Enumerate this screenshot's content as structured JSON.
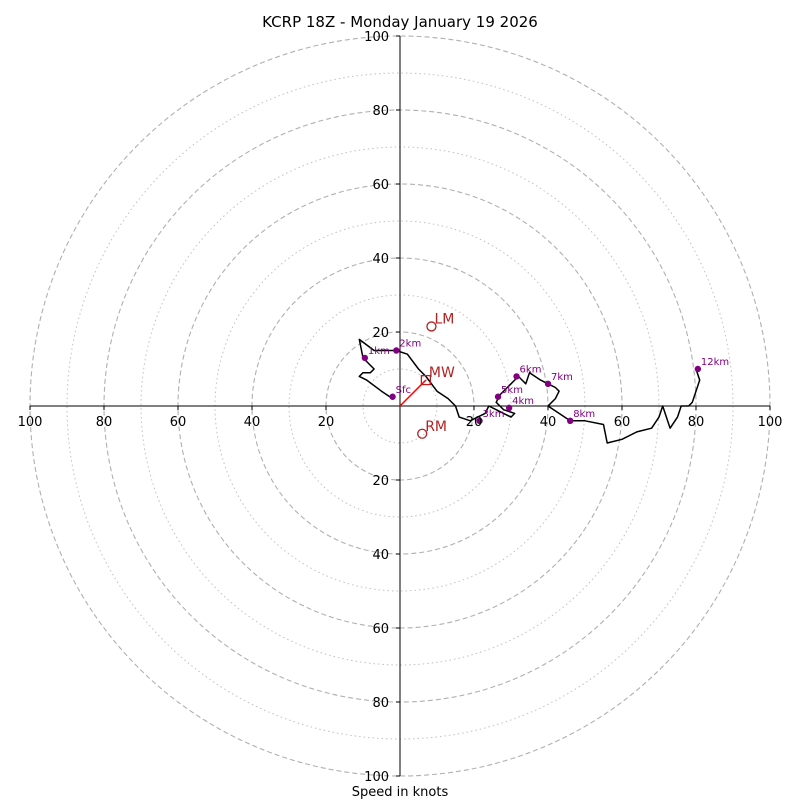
{
  "chart_data": {
    "type": "hodograph",
    "title": "KCRP 18Z - Monday January 19 2026",
    "xlabel": "Speed in knots",
    "max_speed": 100,
    "rings_dashed": [
      20,
      40,
      60,
      80,
      100
    ],
    "rings_dotted": [
      10,
      30,
      50,
      70,
      90
    ],
    "tick_labels": {
      "left": [
        "100",
        "80",
        "60",
        "40",
        "20"
      ],
      "right": [
        "20",
        "40",
        "60",
        "80",
        "100"
      ],
      "up": [
        "20",
        "40",
        "60",
        "80",
        "100"
      ],
      "down": [
        "20",
        "40",
        "60",
        "80",
        "100"
      ],
      "right_values": [
        20,
        40,
        60,
        80,
        100
      ],
      "left_values": [
        100,
        80,
        60,
        40,
        20
      ],
      "up_values": [
        20,
        40,
        60,
        80,
        100
      ],
      "down_values": [
        20,
        40,
        60,
        80,
        100
      ]
    },
    "trace_uv": [
      [
        -2,
        2
      ],
      [
        -5,
        4
      ],
      [
        -9,
        7
      ],
      [
        -11,
        8
      ],
      [
        -10,
        9
      ],
      [
        -8,
        9
      ],
      [
        -7,
        10
      ],
      [
        -10,
        13
      ],
      [
        -11,
        18
      ],
      [
        -7,
        15
      ],
      [
        -1,
        15
      ],
      [
        2,
        14
      ],
      [
        5,
        10
      ],
      [
        7,
        8
      ],
      [
        10,
        4
      ],
      [
        13,
        2
      ],
      [
        15,
        0
      ],
      [
        16,
        -3
      ],
      [
        19,
        -4
      ],
      [
        21,
        -3
      ],
      [
        23,
        -2
      ],
      [
        24,
        0
      ],
      [
        26,
        -1
      ],
      [
        28,
        -2
      ],
      [
        30,
        -3
      ],
      [
        31,
        -2
      ],
      [
        28,
        -1
      ],
      [
        27,
        0
      ],
      [
        26,
        1
      ],
      [
        27,
        3
      ],
      [
        28,
        4
      ],
      [
        29,
        5
      ],
      [
        30,
        6
      ],
      [
        31,
        7
      ],
      [
        32,
        8
      ],
      [
        33,
        7
      ],
      [
        34,
        6
      ],
      [
        35,
        9
      ],
      [
        38,
        7
      ],
      [
        40,
        6
      ],
      [
        42,
        5
      ],
      [
        43,
        4
      ],
      [
        42,
        2
      ],
      [
        41,
        1
      ],
      [
        40,
        0
      ],
      [
        43,
        -2
      ],
      [
        46,
        -4
      ],
      [
        50,
        -4
      ],
      [
        55,
        -5
      ],
      [
        56,
        -10
      ],
      [
        60,
        -9
      ],
      [
        64,
        -7
      ],
      [
        68,
        -6
      ],
      [
        70,
        -3
      ],
      [
        71,
        0
      ],
      [
        72,
        -3
      ],
      [
        73,
        -6
      ],
      [
        75,
        -3
      ],
      [
        76,
        0
      ],
      [
        78,
        0
      ],
      [
        79,
        1
      ],
      [
        81,
        7
      ],
      [
        80,
        10
      ]
    ],
    "height_markers": [
      {
        "label": "Sfc",
        "u": -2,
        "v": 2.5
      },
      {
        "label": "1km",
        "u": -9.5,
        "v": 13
      },
      {
        "label": "2km",
        "u": -1,
        "v": 15
      },
      {
        "label": "3km",
        "u": 21.5,
        "v": -4
      },
      {
        "label": "4km",
        "u": 29.5,
        "v": -0.5
      },
      {
        "label": "5km",
        "u": 26.5,
        "v": 2.5
      },
      {
        "label": "6km",
        "u": 31.5,
        "v": 8
      },
      {
        "label": "7km",
        "u": 40,
        "v": 6
      },
      {
        "label": "8km",
        "u": 46,
        "v": -4
      },
      {
        "label": "12km",
        "u": 80.5,
        "v": 10
      }
    ],
    "motion_markers": [
      {
        "label": "LM",
        "u": 8.5,
        "v": 21.5,
        "shape": "circle"
      },
      {
        "label": "MW",
        "u": 7,
        "v": 7,
        "shape": "square"
      },
      {
        "label": "RM",
        "u": 6,
        "v": -7.5,
        "shape": "circle"
      }
    ],
    "mean_wind_vector": {
      "u": 7,
      "v": 7
    },
    "colors": {
      "trace": "#000000",
      "height_marker": "#800080",
      "motion_marker": "#b22222",
      "vector": "#ff0000",
      "grid": "#b0b0b0",
      "axis": "#000000"
    }
  }
}
